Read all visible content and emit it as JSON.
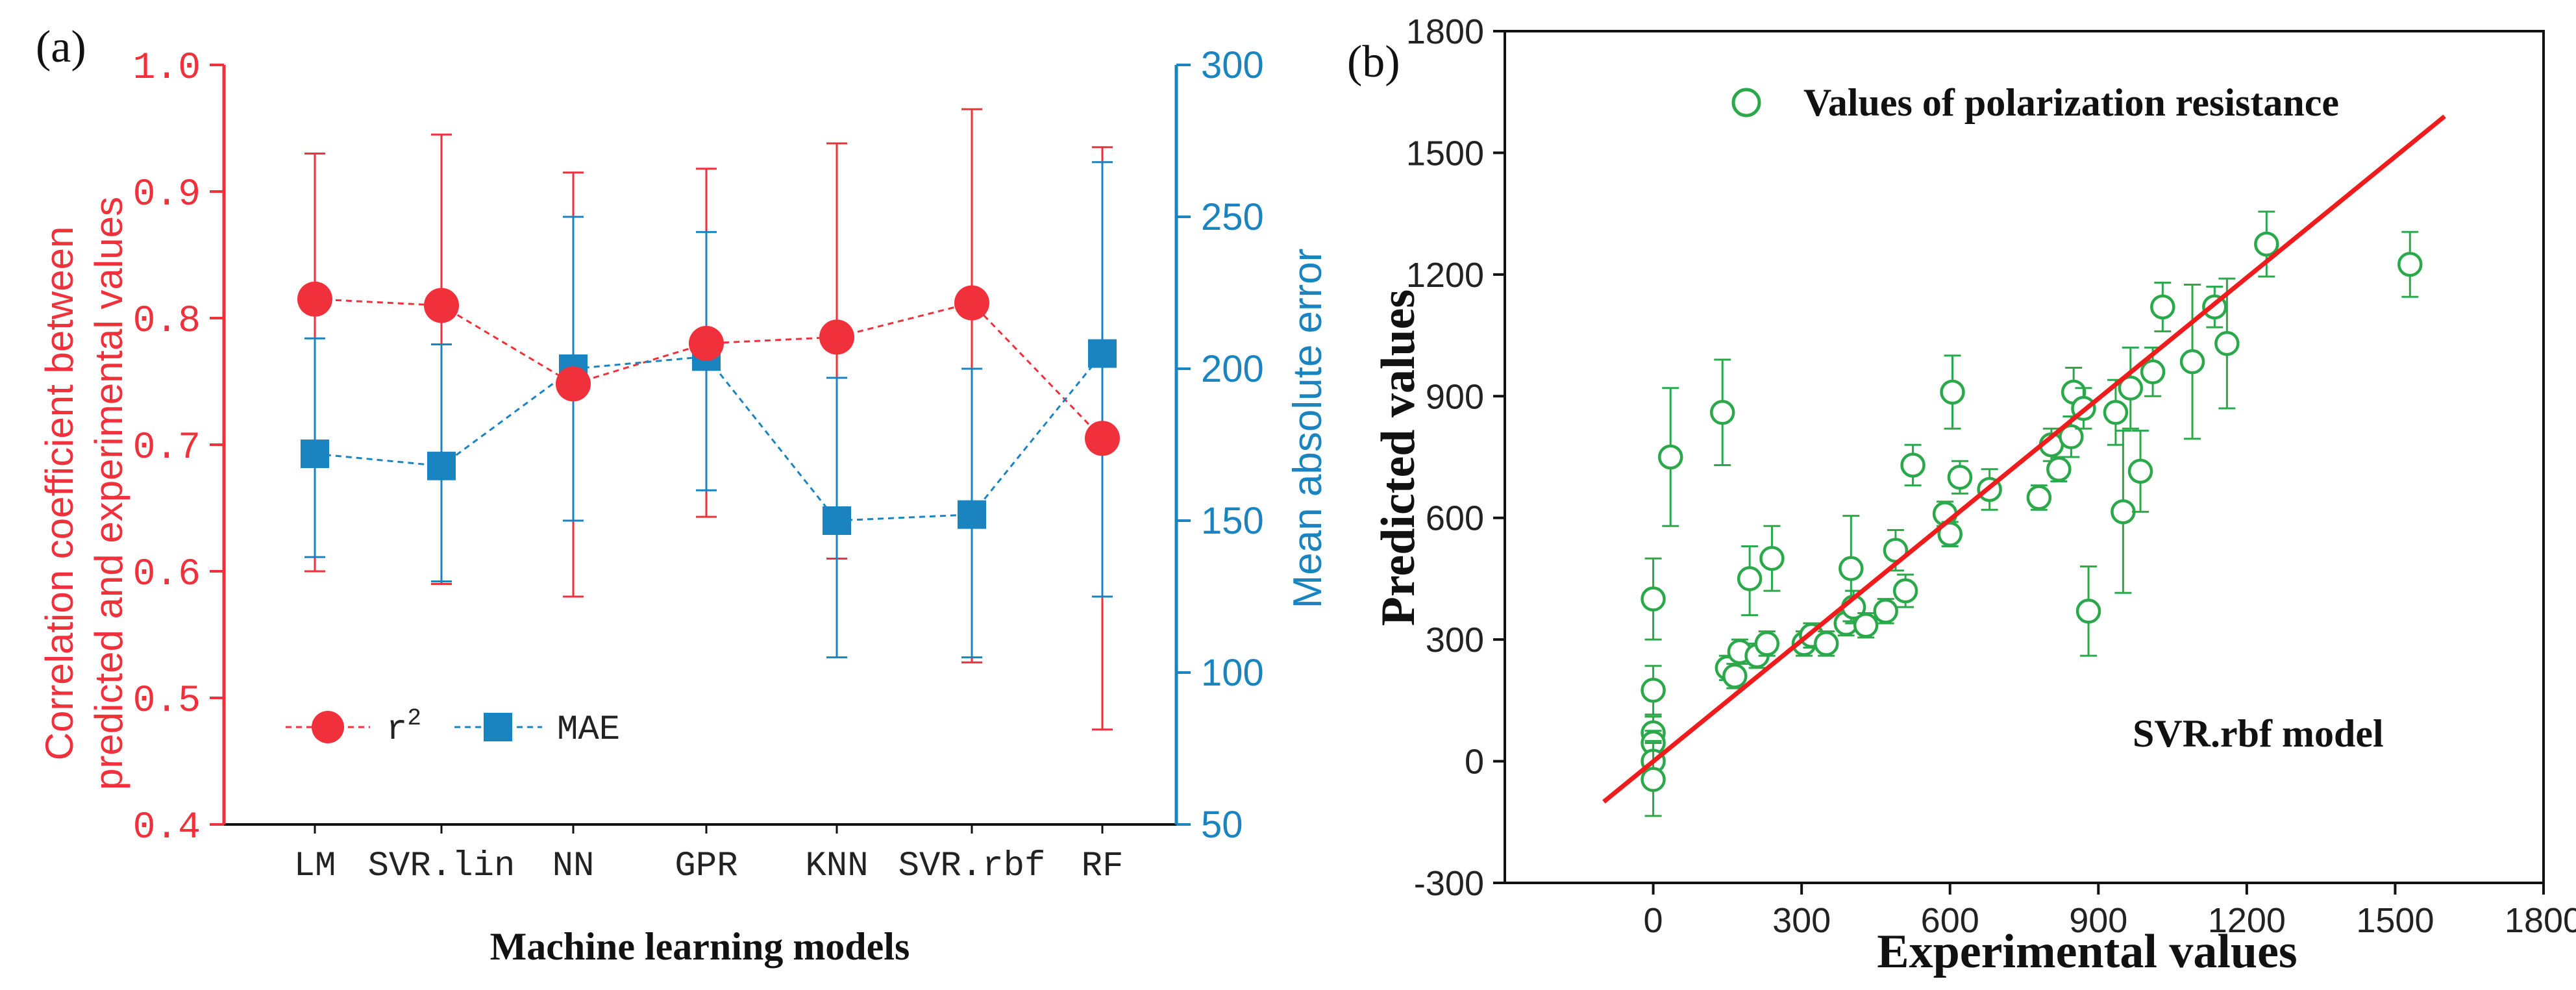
{
  "panel_a_label": "(a)",
  "panel_b_label": "(b)",
  "colors": {
    "red": "#f0303a",
    "blue": "#1a84c0",
    "green": "#2aa84a",
    "fit_line": "#ee1c1c",
    "dark": "#222222"
  },
  "chart_data": [
    {
      "type": "line",
      "panel": "a",
      "categories": [
        "LM",
        "SVR.lin",
        "NN",
        "GPR",
        "KNN",
        "SVR.rbf",
        "RF"
      ],
      "xlabel": "Machine learning models",
      "ylabel_left": [
        "Correlation coefficient between",
        "predicted and experimental values"
      ],
      "ylabel_right": "Mean absolute error",
      "ylim_left": [
        0.4,
        1.0
      ],
      "ylim_right": [
        50,
        300
      ],
      "yticks_left": [
        "0.4",
        "0.5",
        "0.6",
        "0.7",
        "0.8",
        "0.9",
        "1.0"
      ],
      "yticks_right": [
        "50",
        "100",
        "150",
        "200",
        "250",
        "300"
      ],
      "legend_position": "bottom-left",
      "series": [
        {
          "name": "r²",
          "legend_label": "r",
          "legend_sup": "2",
          "axis": "left",
          "values": [
            0.815,
            0.81,
            0.748,
            0.78,
            0.785,
            0.812,
            0.705
          ],
          "err_low": [
            0.6,
            0.59,
            0.58,
            0.643,
            0.61,
            0.528,
            0.475
          ],
          "err_high": [
            0.93,
            0.945,
            0.915,
            0.918,
            0.938,
            0.965,
            0.935
          ]
        },
        {
          "name": "MAE",
          "legend_label": "MAE",
          "axis": "right",
          "values": [
            172,
            168,
            200,
            204,
            150,
            152,
            205
          ],
          "err_low": [
            138,
            130,
            150,
            160,
            105,
            105,
            125
          ],
          "err_high": [
            210,
            208,
            250,
            245,
            197,
            200,
            268
          ]
        }
      ]
    },
    {
      "type": "scatter",
      "panel": "b",
      "xlabel": "Experimental values",
      "ylabel": "Predicted values",
      "xlim": [
        -300,
        1800
      ],
      "ylim": [
        -300,
        1800
      ],
      "xticks": [
        "0",
        "300",
        "600",
        "900",
        "1200",
        "1500",
        "1800"
      ],
      "yticks": [
        "-300",
        "0",
        "300",
        "600",
        "900",
        "1200",
        "1500",
        "1800"
      ],
      "legend": "Values of polarization resistance",
      "annotation": "SVR.rbf model",
      "fit_line": {
        "x": [
          -100,
          1600
        ],
        "y": [
          -100,
          1590
        ]
      },
      "points": [
        {
          "x": 0,
          "y": 400,
          "el": 100,
          "eh": 100
        },
        {
          "x": 0,
          "y": 175,
          "el": 60,
          "eh": 60
        },
        {
          "x": 0,
          "y": 70,
          "el": 40,
          "eh": 40
        },
        {
          "x": 0,
          "y": 45,
          "el": 30,
          "eh": 30
        },
        {
          "x": 0,
          "y": 0,
          "el": 50,
          "eh": 50
        },
        {
          "x": 0,
          "y": -45,
          "el": 90,
          "eh": 90
        },
        {
          "x": 35,
          "y": 750,
          "el": 170,
          "eh": 170
        },
        {
          "x": 140,
          "y": 860,
          "el": 130,
          "eh": 130
        },
        {
          "x": 150,
          "y": 230,
          "el": 30,
          "eh": 30
        },
        {
          "x": 165,
          "y": 210,
          "el": 30,
          "eh": 30
        },
        {
          "x": 175,
          "y": 270,
          "el": 30,
          "eh": 30
        },
        {
          "x": 195,
          "y": 450,
          "el": 90,
          "eh": 80
        },
        {
          "x": 210,
          "y": 260,
          "el": 30,
          "eh": 30
        },
        {
          "x": 230,
          "y": 290,
          "el": 30,
          "eh": 30
        },
        {
          "x": 240,
          "y": 500,
          "el": 80,
          "eh": 80
        },
        {
          "x": 305,
          "y": 290,
          "el": 30,
          "eh": 30
        },
        {
          "x": 320,
          "y": 310,
          "el": 30,
          "eh": 30
        },
        {
          "x": 350,
          "y": 290,
          "el": 30,
          "eh": 30
        },
        {
          "x": 390,
          "y": 340,
          "el": 30,
          "eh": 30
        },
        {
          "x": 400,
          "y": 475,
          "el": 130,
          "eh": 130
        },
        {
          "x": 405,
          "y": 380,
          "el": 40,
          "eh": 40
        },
        {
          "x": 430,
          "y": 335,
          "el": 30,
          "eh": 30
        },
        {
          "x": 470,
          "y": 370,
          "el": 30,
          "eh": 30
        },
        {
          "x": 490,
          "y": 520,
          "el": 50,
          "eh": 50
        },
        {
          "x": 510,
          "y": 420,
          "el": 40,
          "eh": 40
        },
        {
          "x": 525,
          "y": 730,
          "el": 50,
          "eh": 50
        },
        {
          "x": 590,
          "y": 610,
          "el": 30,
          "eh": 30
        },
        {
          "x": 600,
          "y": 560,
          "el": 30,
          "eh": 30
        },
        {
          "x": 605,
          "y": 910,
          "el": 90,
          "eh": 90
        },
        {
          "x": 620,
          "y": 700,
          "el": 40,
          "eh": 40
        },
        {
          "x": 680,
          "y": 670,
          "el": 50,
          "eh": 50
        },
        {
          "x": 780,
          "y": 650,
          "el": 30,
          "eh": 30
        },
        {
          "x": 805,
          "y": 780,
          "el": 40,
          "eh": 40
        },
        {
          "x": 820,
          "y": 720,
          "el": 30,
          "eh": 30
        },
        {
          "x": 845,
          "y": 800,
          "el": 50,
          "eh": 50
        },
        {
          "x": 850,
          "y": 910,
          "el": 60,
          "eh": 60
        },
        {
          "x": 870,
          "y": 870,
          "el": 50,
          "eh": 50
        },
        {
          "x": 880,
          "y": 370,
          "el": 110,
          "eh": 110
        },
        {
          "x": 935,
          "y": 860,
          "el": 80,
          "eh": 80
        },
        {
          "x": 950,
          "y": 615,
          "el": 200,
          "eh": 200
        },
        {
          "x": 965,
          "y": 920,
          "el": 100,
          "eh": 100
        },
        {
          "x": 985,
          "y": 715,
          "el": 100,
          "eh": 100
        },
        {
          "x": 1010,
          "y": 960,
          "el": 60,
          "eh": 60
        },
        {
          "x": 1030,
          "y": 1120,
          "el": 60,
          "eh": 60
        },
        {
          "x": 1090,
          "y": 985,
          "el": 190,
          "eh": 190
        },
        {
          "x": 1135,
          "y": 1120,
          "el": 50,
          "eh": 50
        },
        {
          "x": 1160,
          "y": 1030,
          "el": 160,
          "eh": 160
        },
        {
          "x": 1240,
          "y": 1275,
          "el": 80,
          "eh": 80
        },
        {
          "x": 1530,
          "y": 1225,
          "el": 80,
          "eh": 80
        }
      ]
    }
  ]
}
